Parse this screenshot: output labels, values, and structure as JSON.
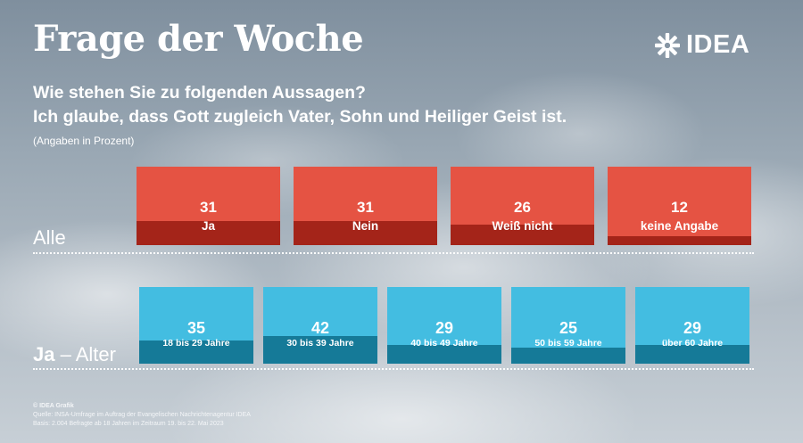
{
  "header": {
    "title": "Frage der Woche",
    "logo_text": "IDEA",
    "question_line1": "Wie stehen Sie zu folgenden Aussagen?",
    "question_line2": "Ich glaube, dass Gott zugleich Vater, Sohn und Heiliger Geist ist.",
    "unit_note": "(Angaben in Prozent)"
  },
  "sections": {
    "all_label": "Alle",
    "age_label_bold": "Ja",
    "age_label_rest": " – Alter"
  },
  "chart_data": [
    {
      "type": "bar",
      "group": "Alle",
      "categories": [
        "Ja",
        "Nein",
        "Weiß nicht",
        "keine Angabe"
      ],
      "values": [
        31,
        31,
        26,
        12
      ],
      "unit": "Prozent",
      "colors": {
        "box": "#e55343",
        "fill": "#a42419"
      }
    },
    {
      "type": "bar",
      "group": "Ja – Alter",
      "categories": [
        "18 bis 29 Jahre",
        "30 bis 39 Jahre",
        "40 bis 49 Jahre",
        "50 bis 59 Jahre",
        "über 60 Jahre"
      ],
      "values": [
        35,
        42,
        29,
        25,
        29
      ],
      "unit": "Prozent",
      "colors": {
        "box": "#43bde1",
        "fill": "#157a98"
      }
    }
  ],
  "footer": {
    "credit": "© IDEA Grafik",
    "source": "Quelle: INSA-Umfrage im Auftrag der Evangelischen Nachrichtenagentur IDEA",
    "basis": "Basis: 2.004 Befragte ab 18 Jahren im Zeitraum 19. bis 22. Mai 2023"
  },
  "colors": {
    "red": "#e55343",
    "dark_red": "#a42419",
    "blue": "#43bde1",
    "dark_blue": "#157a98"
  }
}
